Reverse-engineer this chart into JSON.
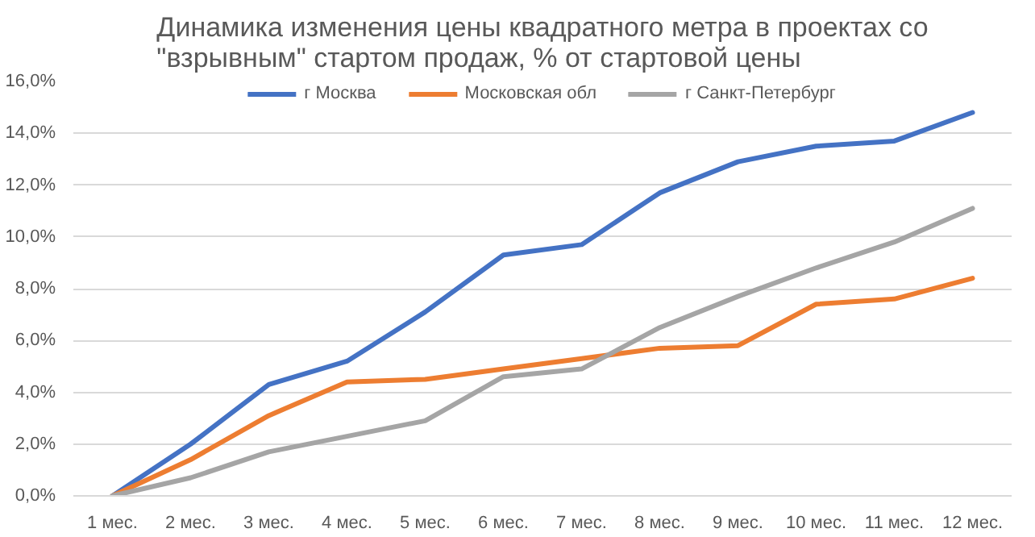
{
  "chart_data": {
    "type": "line",
    "title": "Динамика изменения цены квадратного метра в проектах со \"взрывным\" стартом продаж, % от стартовой цены",
    "categories": [
      "1 мес.",
      "2 мес.",
      "3 мес.",
      "4 мес.",
      "5 мес.",
      "6 мес.",
      "7 мес.",
      "8 мес.",
      "9 мес.",
      "10 мес.",
      "11 мес.",
      "12 мес."
    ],
    "series": [
      {
        "name": "г Москва",
        "color": "#4472c4",
        "values": [
          0,
          2.0,
          4.3,
          5.2,
          7.1,
          9.3,
          9.7,
          11.7,
          12.9,
          13.5,
          13.7,
          14.8
        ]
      },
      {
        "name": "Московская обл",
        "color": "#ed7d31",
        "values": [
          0,
          1.4,
          3.1,
          4.4,
          4.5,
          4.9,
          5.3,
          5.7,
          5.8,
          7.4,
          7.6,
          8.4
        ]
      },
      {
        "name": "г Санкт-Петербург",
        "color": "#a5a5a5",
        "values": [
          0,
          0.7,
          1.7,
          2.3,
          2.9,
          4.6,
          4.9,
          6.5,
          7.7,
          8.8,
          9.8,
          11.1
        ]
      }
    ],
    "ylim": [
      0,
      16
    ],
    "yticks": [
      {
        "value": 0,
        "label": "0,0%"
      },
      {
        "value": 2,
        "label": "2,0%"
      },
      {
        "value": 4,
        "label": "4,0%"
      },
      {
        "value": 6,
        "label": "6,0%"
      },
      {
        "value": 8,
        "label": "8,0%"
      },
      {
        "value": 10,
        "label": "10,0%"
      },
      {
        "value": 12,
        "label": "12,0%"
      },
      {
        "value": 14,
        "label": "14,0%"
      },
      {
        "value": 16,
        "label": "16,0%"
      }
    ],
    "grid": "y",
    "legend": "top",
    "line_style": "solid"
  }
}
